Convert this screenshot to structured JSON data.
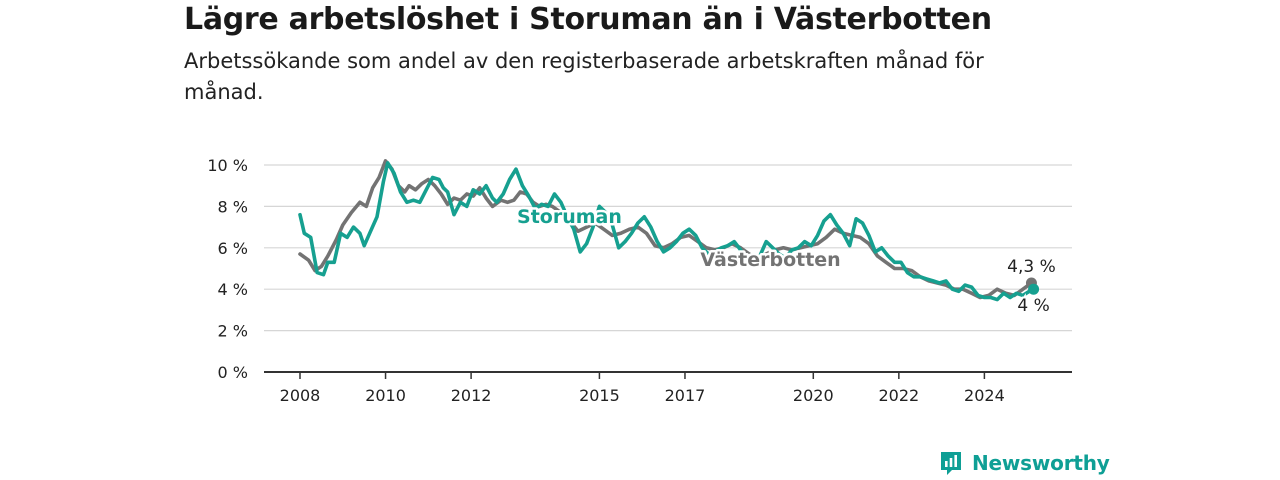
{
  "header": {
    "title": "Lägre arbetslöshet i Storuman än i Västerbotten",
    "subtitle": "Arbetssökande som andel av den registerbaserade arbetskraften månad för månad."
  },
  "brand": {
    "name": "Newsworthy",
    "icon": "newsworthy-logo-icon",
    "color": "#0e9f95"
  },
  "chart_data": {
    "type": "line",
    "title": "Lägre arbetslöshet i Storuman än i Västerbotten",
    "subtitle": "Arbetssökande som andel av den registerbaserade arbetskraften månad för månad.",
    "xlabel": "",
    "ylabel": "",
    "ylim": [
      0,
      10
    ],
    "xlim": [
      2008,
      2025.3
    ],
    "y_ticks": [
      "0 %",
      "2 %",
      "4 %",
      "6 %",
      "8 %",
      "10 %"
    ],
    "x_ticks": [
      "2008",
      "2010",
      "2012",
      "2015",
      "2017",
      "2020",
      "2022",
      "2024"
    ],
    "grid": true,
    "legend": "inline labels",
    "series": [
      {
        "name": "Västerbotten",
        "color": "#737373",
        "end_label": "4,3 %",
        "points": [
          [
            2008.0,
            5.7
          ],
          [
            2008.2,
            5.4
          ],
          [
            2008.35,
            4.9
          ],
          [
            2008.5,
            5.1
          ],
          [
            2008.65,
            5.6
          ],
          [
            2008.85,
            6.4
          ],
          [
            2009.0,
            7.1
          ],
          [
            2009.2,
            7.7
          ],
          [
            2009.4,
            8.2
          ],
          [
            2009.55,
            8.0
          ],
          [
            2009.7,
            8.9
          ],
          [
            2009.85,
            9.4
          ],
          [
            2010.0,
            10.2
          ],
          [
            2010.15,
            9.8
          ],
          [
            2010.3,
            9.0
          ],
          [
            2010.45,
            8.7
          ],
          [
            2010.55,
            9.0
          ],
          [
            2010.7,
            8.8
          ],
          [
            2010.85,
            9.1
          ],
          [
            2011.0,
            9.3
          ],
          [
            2011.15,
            9.0
          ],
          [
            2011.3,
            8.6
          ],
          [
            2011.45,
            8.1
          ],
          [
            2011.6,
            8.4
          ],
          [
            2011.75,
            8.3
          ],
          [
            2011.9,
            8.6
          ],
          [
            2012.05,
            8.5
          ],
          [
            2012.2,
            8.9
          ],
          [
            2012.35,
            8.4
          ],
          [
            2012.5,
            8.0
          ],
          [
            2012.7,
            8.3
          ],
          [
            2012.85,
            8.2
          ],
          [
            2013.0,
            8.3
          ],
          [
            2013.15,
            8.7
          ],
          [
            2013.3,
            8.6
          ],
          [
            2013.45,
            8.2
          ],
          [
            2013.6,
            8.0
          ],
          [
            2013.75,
            8.1
          ],
          [
            2013.9,
            8.0
          ],
          [
            2014.1,
            7.7
          ],
          [
            2014.3,
            7.3
          ],
          [
            2014.5,
            6.8
          ],
          [
            2014.7,
            7.0
          ],
          [
            2014.9,
            7.2
          ],
          [
            2015.1,
            6.9
          ],
          [
            2015.3,
            6.6
          ],
          [
            2015.5,
            6.7
          ],
          [
            2015.7,
            6.9
          ],
          [
            2015.9,
            7.0
          ],
          [
            2016.1,
            6.7
          ],
          [
            2016.3,
            6.1
          ],
          [
            2016.5,
            6.0
          ],
          [
            2016.7,
            6.2
          ],
          [
            2016.9,
            6.5
          ],
          [
            2017.1,
            6.6
          ],
          [
            2017.3,
            6.3
          ],
          [
            2017.5,
            6.0
          ],
          [
            2017.7,
            5.9
          ],
          [
            2017.9,
            6.0
          ],
          [
            2018.1,
            6.2
          ],
          [
            2018.3,
            6.0
          ],
          [
            2018.5,
            5.7
          ],
          [
            2018.7,
            5.5
          ],
          [
            2018.9,
            5.7
          ],
          [
            2019.1,
            5.9
          ],
          [
            2019.3,
            6.0
          ],
          [
            2019.5,
            5.9
          ],
          [
            2019.7,
            6.0
          ],
          [
            2019.9,
            6.1
          ],
          [
            2020.1,
            6.2
          ],
          [
            2020.3,
            6.5
          ],
          [
            2020.5,
            6.9
          ],
          [
            2020.7,
            6.7
          ],
          [
            2020.9,
            6.6
          ],
          [
            2021.1,
            6.5
          ],
          [
            2021.3,
            6.2
          ],
          [
            2021.5,
            5.6
          ],
          [
            2021.7,
            5.3
          ],
          [
            2021.9,
            5.0
          ],
          [
            2022.1,
            5.0
          ],
          [
            2022.3,
            4.9
          ],
          [
            2022.5,
            4.6
          ],
          [
            2022.7,
            4.4
          ],
          [
            2022.9,
            4.3
          ],
          [
            2023.1,
            4.2
          ],
          [
            2023.3,
            4.0
          ],
          [
            2023.5,
            4.0
          ],
          [
            2023.7,
            3.8
          ],
          [
            2023.9,
            3.6
          ],
          [
            2024.1,
            3.7
          ],
          [
            2024.3,
            4.0
          ],
          [
            2024.5,
            3.8
          ],
          [
            2024.7,
            3.7
          ],
          [
            2024.9,
            4.0
          ],
          [
            2025.1,
            4.3
          ]
        ]
      },
      {
        "name": "Storuman",
        "color": "#16a090",
        "end_label": "4 %",
        "points": [
          [
            2008.0,
            7.6
          ],
          [
            2008.1,
            6.7
          ],
          [
            2008.25,
            6.5
          ],
          [
            2008.4,
            4.8
          ],
          [
            2008.55,
            4.7
          ],
          [
            2008.65,
            5.3
          ],
          [
            2008.8,
            5.3
          ],
          [
            2008.95,
            6.7
          ],
          [
            2009.1,
            6.5
          ],
          [
            2009.25,
            7.0
          ],
          [
            2009.4,
            6.7
          ],
          [
            2009.5,
            6.1
          ],
          [
            2009.65,
            6.8
          ],
          [
            2009.8,
            7.5
          ],
          [
            2009.95,
            9.2
          ],
          [
            2010.05,
            10.1
          ],
          [
            2010.2,
            9.6
          ],
          [
            2010.35,
            8.7
          ],
          [
            2010.5,
            8.2
          ],
          [
            2010.65,
            8.3
          ],
          [
            2010.8,
            8.2
          ],
          [
            2010.95,
            8.8
          ],
          [
            2011.1,
            9.4
          ],
          [
            2011.25,
            9.3
          ],
          [
            2011.35,
            8.9
          ],
          [
            2011.45,
            8.7
          ],
          [
            2011.6,
            7.6
          ],
          [
            2011.75,
            8.2
          ],
          [
            2011.9,
            8.0
          ],
          [
            2012.05,
            8.8
          ],
          [
            2012.2,
            8.6
          ],
          [
            2012.35,
            9.0
          ],
          [
            2012.5,
            8.4
          ],
          [
            2012.6,
            8.2
          ],
          [
            2012.75,
            8.6
          ],
          [
            2012.9,
            9.3
          ],
          [
            2013.05,
            9.8
          ],
          [
            2013.2,
            9.0
          ],
          [
            2013.35,
            8.5
          ],
          [
            2013.5,
            7.9
          ],
          [
            2013.65,
            8.1
          ],
          [
            2013.8,
            8.0
          ],
          [
            2013.95,
            8.6
          ],
          [
            2014.1,
            8.2
          ],
          [
            2014.25,
            7.5
          ],
          [
            2014.4,
            6.9
          ],
          [
            2014.55,
            5.8
          ],
          [
            2014.7,
            6.2
          ],
          [
            2014.85,
            7.0
          ],
          [
            2015.0,
            8.0
          ],
          [
            2015.15,
            7.7
          ],
          [
            2015.3,
            7.1
          ],
          [
            2015.45,
            6.0
          ],
          [
            2015.6,
            6.3
          ],
          [
            2015.75,
            6.7
          ],
          [
            2015.9,
            7.2
          ],
          [
            2016.05,
            7.5
          ],
          [
            2016.2,
            7.0
          ],
          [
            2016.35,
            6.3
          ],
          [
            2016.5,
            5.8
          ],
          [
            2016.65,
            6.0
          ],
          [
            2016.8,
            6.3
          ],
          [
            2016.95,
            6.7
          ],
          [
            2017.1,
            6.9
          ],
          [
            2017.25,
            6.6
          ],
          [
            2017.4,
            6.0
          ],
          [
            2017.55,
            5.7
          ],
          [
            2017.7,
            5.8
          ],
          [
            2017.85,
            6.0
          ],
          [
            2018.0,
            6.1
          ],
          [
            2018.15,
            6.3
          ],
          [
            2018.3,
            5.9
          ],
          [
            2018.45,
            5.4
          ],
          [
            2018.6,
            5.1
          ],
          [
            2018.75,
            5.6
          ],
          [
            2018.9,
            6.3
          ],
          [
            2019.05,
            6.0
          ],
          [
            2019.2,
            5.7
          ],
          [
            2019.35,
            5.5
          ],
          [
            2019.5,
            5.9
          ],
          [
            2019.65,
            6.0
          ],
          [
            2019.8,
            6.3
          ],
          [
            2019.95,
            6.1
          ],
          [
            2020.1,
            6.6
          ],
          [
            2020.25,
            7.3
          ],
          [
            2020.4,
            7.6
          ],
          [
            2020.55,
            7.1
          ],
          [
            2020.7,
            6.7
          ],
          [
            2020.85,
            6.1
          ],
          [
            2021.0,
            7.4
          ],
          [
            2021.15,
            7.2
          ],
          [
            2021.3,
            6.6
          ],
          [
            2021.45,
            5.8
          ],
          [
            2021.6,
            6.0
          ],
          [
            2021.75,
            5.6
          ],
          [
            2021.9,
            5.3
          ],
          [
            2022.05,
            5.3
          ],
          [
            2022.2,
            4.8
          ],
          [
            2022.35,
            4.6
          ],
          [
            2022.5,
            4.6
          ],
          [
            2022.65,
            4.5
          ],
          [
            2022.8,
            4.4
          ],
          [
            2022.95,
            4.3
          ],
          [
            2023.1,
            4.4
          ],
          [
            2023.25,
            4.0
          ],
          [
            2023.4,
            3.9
          ],
          [
            2023.55,
            4.2
          ],
          [
            2023.7,
            4.1
          ],
          [
            2023.85,
            3.7
          ],
          [
            2024.0,
            3.6
          ],
          [
            2024.15,
            3.6
          ],
          [
            2024.3,
            3.5
          ],
          [
            2024.45,
            3.8
          ],
          [
            2024.6,
            3.6
          ],
          [
            2024.75,
            3.8
          ],
          [
            2024.9,
            3.7
          ],
          [
            2025.05,
            3.9
          ],
          [
            2025.15,
            4.0
          ]
        ]
      }
    ],
    "inline_labels": [
      {
        "series": "Storuman",
        "text": "Storuman",
        "x": 2014.3,
        "y": 7.5
      },
      {
        "series": "Västerbotten",
        "text": "Västerbotten",
        "x": 2019.0,
        "y": 5.4
      }
    ]
  }
}
